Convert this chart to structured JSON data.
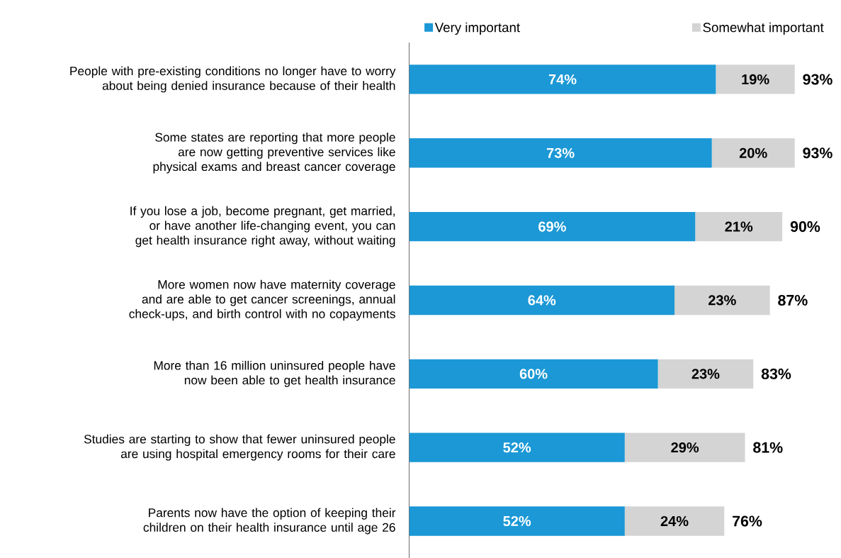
{
  "chart_data": {
    "type": "bar",
    "orientation": "horizontal",
    "stacked": true,
    "legend": "top",
    "categories": [
      "People with pre-existing conditions no longer have to worry about being denied insurance because of their health",
      "Some states are reporting that more people are now getting preventive services like physical exams and breast cancer coverage",
      "If you lose a job, become pregnant, get married, or have another life-changing event, you can get health insurance right away, without waiting",
      "More women now have maternity coverage and are able to get cancer screenings, annual check-ups, and birth control with no copayments",
      "More than 16 million uninsured people have now been able to get health insurance",
      "Studies are starting to show that fewer uninsured people are using hospital emergency rooms for their care",
      "Parents now have the option of keeping their children on their health insurance until age 26"
    ],
    "series": [
      {
        "name": "Very important",
        "color": "#1b98d5",
        "values": [
          74,
          73,
          69,
          64,
          60,
          52,
          52
        ],
        "value_labels": [
          "74%",
          "73%",
          "69%",
          "64%",
          "60%",
          "52%",
          "52%"
        ]
      },
      {
        "name": "Somewhat important",
        "color": "#d4d4d4",
        "values": [
          19,
          20,
          21,
          23,
          23,
          29,
          24
        ],
        "value_labels": [
          "19%",
          "20%",
          "21%",
          "23%",
          "23%",
          "29%",
          "24%"
        ]
      }
    ],
    "totals": [
      "93%",
      "93%",
      "90%",
      "87%",
      "83%",
      "81%",
      "76%"
    ]
  }
}
